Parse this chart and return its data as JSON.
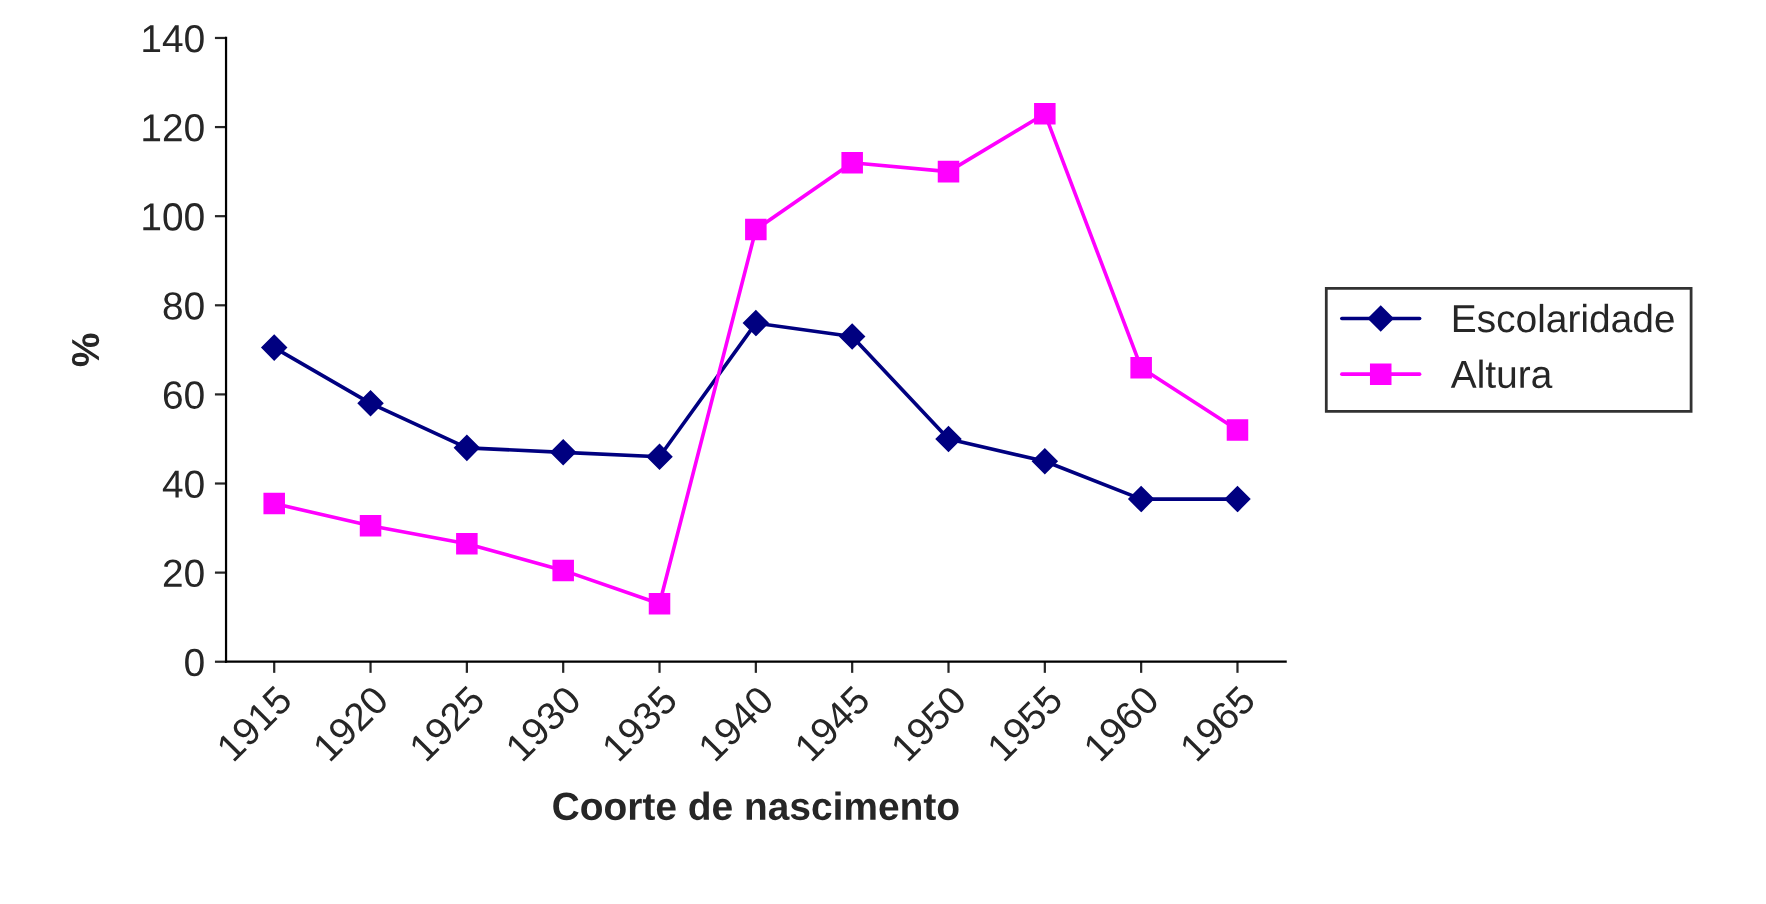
{
  "chart_data": {
    "type": "line",
    "xlabel": "Coorte de nascimento",
    "ylabel": "%",
    "categories": [
      "1915",
      "1920",
      "1925",
      "1930",
      "1935",
      "1940",
      "1945",
      "1950",
      "1955",
      "1960",
      "1965"
    ],
    "series": [
      {
        "name": "Escolaridade",
        "color": "#000080",
        "marker": "diamond",
        "values": [
          70.5,
          58,
          48,
          47,
          46,
          76,
          73,
          50,
          45,
          36.5,
          36.5
        ]
      },
      {
        "name": "Altura",
        "color": "#ff00ff",
        "marker": "square",
        "values": [
          35.5,
          30.5,
          26.5,
          20.5,
          13,
          97,
          112,
          110,
          123,
          66,
          52
        ]
      }
    ],
    "ylim": [
      0,
      140
    ],
    "yticks": [
      0,
      20,
      40,
      60,
      80,
      100,
      120,
      140
    ],
    "grid": false,
    "legend": "right",
    "line_style": "solid"
  }
}
